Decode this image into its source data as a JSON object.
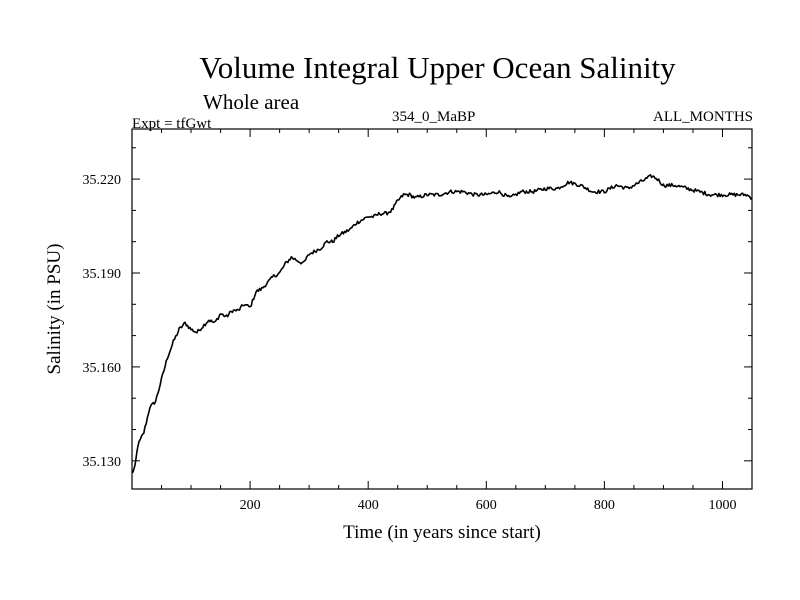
{
  "header": {
    "title": "Volume Integral Upper Ocean Salinity",
    "subtitle": "Whole area",
    "expt_label": "Expt = tfGwt",
    "case_label": "354_0_MaBP",
    "months_label": "ALL_MONTHS"
  },
  "chart_data": {
    "type": "line",
    "title": "Volume Integral Upper Ocean Salinity",
    "subtitle": "Whole area",
    "xlabel": "Time (in years since start)",
    "ylabel": "Salinity (in PSU)",
    "xlim": [
      0,
      1050
    ],
    "ylim": [
      35.121,
      35.236
    ],
    "xticks": [
      200,
      400,
      600,
      800,
      1000
    ],
    "xtick_labels": [
      "200",
      "400",
      "600",
      "800",
      "1000"
    ],
    "yticks": [
      35.13,
      35.16,
      35.19,
      35.22
    ],
    "ytick_labels": [
      "35.130",
      "35.160",
      "35.190",
      "35.220"
    ],
    "grid": false,
    "series": [
      {
        "name": "Salinity",
        "x": [
          0,
          5,
          10,
          20,
          30,
          40,
          50,
          60,
          70,
          80,
          90,
          100,
          110,
          120,
          130,
          140,
          150,
          160,
          170,
          180,
          190,
          200,
          210,
          220,
          230,
          240,
          250,
          260,
          270,
          280,
          290,
          300,
          310,
          320,
          330,
          340,
          350,
          360,
          370,
          380,
          390,
          400,
          410,
          420,
          430,
          440,
          450,
          460,
          470,
          480,
          500,
          520,
          540,
          560,
          580,
          600,
          620,
          640,
          660,
          680,
          700,
          720,
          740,
          760,
          780,
          800,
          820,
          840,
          860,
          880,
          890,
          900,
          920,
          940,
          960,
          980,
          1000,
          1020,
          1040,
          1050
        ],
        "values": [
          35.126,
          35.128,
          35.135,
          35.139,
          35.147,
          35.149,
          35.156,
          35.163,
          35.168,
          35.172,
          35.174,
          35.172,
          35.171,
          35.173,
          35.175,
          35.174,
          35.177,
          35.176,
          35.178,
          35.178,
          35.18,
          35.179,
          35.184,
          35.185,
          35.187,
          35.189,
          35.19,
          35.193,
          35.195,
          35.194,
          35.193,
          35.196,
          35.197,
          35.198,
          35.2,
          35.2,
          35.202,
          35.203,
          35.204,
          35.206,
          35.207,
          35.208,
          35.208,
          35.209,
          35.209,
          35.21,
          35.213,
          35.215,
          35.215,
          35.214,
          35.215,
          35.215,
          35.216,
          35.216,
          35.215,
          35.215,
          35.216,
          35.214,
          35.216,
          35.216,
          35.217,
          35.217,
          35.219,
          35.218,
          35.216,
          35.216,
          35.218,
          35.217,
          35.219,
          35.221,
          35.22,
          35.218,
          35.218,
          35.217,
          35.216,
          35.215,
          35.215,
          35.215,
          35.215,
          35.214
        ]
      }
    ]
  }
}
